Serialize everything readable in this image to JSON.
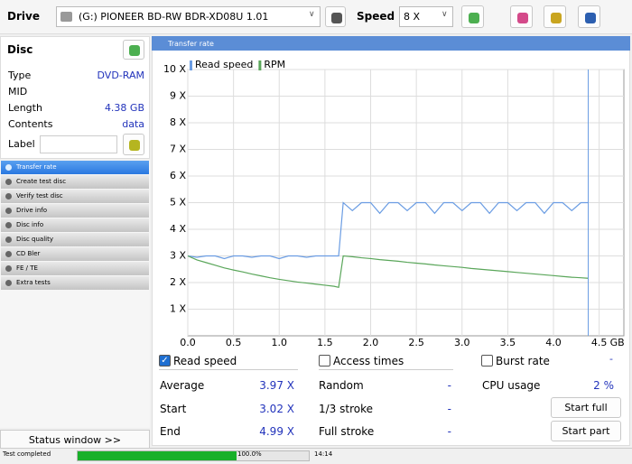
{
  "toolbar": {
    "drive_label": "Drive",
    "drive": "(G:)   PIONEER BD-RW   BDR-XD08U 1.01",
    "speed_label": "Speed",
    "speed": "8 X"
  },
  "disc": {
    "title": "Disc",
    "rows": [
      {
        "label": "Type",
        "value": "DVD-RAM"
      },
      {
        "label": "MID"
      },
      {
        "label": "Length",
        "value": "4.38 GB"
      },
      {
        "label": "Contents",
        "value": "data"
      },
      {
        "label": "Label"
      }
    ]
  },
  "nav": {
    "selected": 0,
    "items": [
      "Transfer rate",
      "Create test disc",
      "Verify test disc",
      "Drive info",
      "Disc info",
      "Disc quality",
      "CD Bler",
      "FE / TE",
      "Extra tests"
    ]
  },
  "status_button": "Status window >>",
  "panel_title": "Transfer rate",
  "chart_data": {
    "type": "line",
    "xlabel": "GB",
    "x": [
      0,
      0.1,
      0.2,
      0.3,
      0.4,
      0.5,
      0.6,
      0.7,
      0.8,
      0.9,
      1.0,
      1.1,
      1.2,
      1.3,
      1.4,
      1.5,
      1.6,
      1.65,
      1.7,
      1.8,
      1.9,
      2.0,
      2.1,
      2.2,
      2.3,
      2.4,
      2.5,
      2.6,
      2.7,
      2.8,
      2.9,
      3.0,
      3.1,
      3.2,
      3.3,
      3.4,
      3.5,
      3.6,
      3.7,
      3.8,
      3.9,
      4.0,
      4.1,
      4.2,
      4.3,
      4.38
    ],
    "series": [
      {
        "name": "Read speed",
        "color": "#6b9de3",
        "values": [
          3.0,
          2.95,
          3.0,
          3.0,
          2.9,
          3.0,
          3.0,
          2.95,
          3.0,
          3.0,
          2.9,
          3.0,
          3.0,
          2.95,
          3.0,
          3.0,
          3.0,
          3.0,
          5.0,
          4.7,
          5.0,
          5.0,
          4.6,
          5.0,
          5.0,
          4.7,
          5.0,
          5.0,
          4.6,
          5.0,
          5.0,
          4.7,
          5.0,
          5.0,
          4.6,
          5.0,
          5.0,
          4.7,
          5.0,
          5.0,
          4.6,
          5.0,
          5.0,
          4.7,
          5.0,
          5.0
        ]
      },
      {
        "name": "RPM",
        "color": "#5aa65a",
        "values": [
          3.0,
          2.85,
          2.75,
          2.65,
          2.55,
          2.47,
          2.4,
          2.32,
          2.25,
          2.18,
          2.12,
          2.07,
          2.02,
          1.98,
          1.94,
          1.9,
          1.86,
          1.82,
          3.0,
          2.97,
          2.93,
          2.9,
          2.86,
          2.83,
          2.8,
          2.76,
          2.73,
          2.7,
          2.66,
          2.63,
          2.6,
          2.57,
          2.53,
          2.5,
          2.47,
          2.44,
          2.41,
          2.38,
          2.35,
          2.32,
          2.29,
          2.26,
          2.23,
          2.2,
          2.18,
          2.16
        ]
      }
    ],
    "xlim": [
      0,
      4.77
    ],
    "xticks": [
      {
        "value": 0,
        "label": "0.0"
      },
      0.5,
      {
        "value": 1,
        "label": "1.0"
      },
      1.5,
      {
        "value": 2,
        "label": "2.0"
      },
      2.5,
      {
        "value": 3,
        "label": "3.0"
      },
      3.5,
      {
        "value": 4,
        "label": "4.0"
      },
      4.5
    ],
    "ylim": [
      0,
      10
    ],
    "yticks": [
      {
        "value": 1,
        "label": "1 X"
      },
      {
        "value": 2,
        "label": "2 X"
      },
      {
        "value": 3,
        "label": "3 X"
      },
      {
        "value": 4,
        "label": "4 X"
      },
      {
        "value": 5,
        "label": "5 X"
      },
      {
        "value": 6,
        "label": "6 X"
      },
      {
        "value": 7,
        "label": "7 X"
      },
      {
        "value": 8,
        "label": "8 X"
      },
      {
        "value": 9,
        "label": "9 X"
      },
      {
        "value": 10,
        "label": "10 X"
      }
    ],
    "grid": true,
    "legend": "top-left"
  },
  "options": [
    {
      "label": "Read speed",
      "checked": true
    },
    {
      "label": "Access times",
      "checked": false
    },
    {
      "label": "Burst rate",
      "checked": false
    }
  ],
  "burst_value": "-",
  "stats": [
    [
      {
        "label": "Average",
        "value": "3.97 X"
      },
      {
        "label": "Start",
        "value": "3.02 X"
      },
      {
        "label": "End",
        "value": "4.99 X"
      }
    ],
    [
      {
        "label": "Random",
        "value": "-"
      },
      {
        "label": "1/3 stroke",
        "value": "-"
      },
      {
        "label": "Full stroke",
        "value": "-"
      }
    ],
    [
      {
        "label": "CPU usage",
        "value": "2 %"
      }
    ]
  ],
  "buttons": [
    "Start full",
    "Start part"
  ],
  "statusbar": {
    "text": "Test completed",
    "progress": 100.0,
    "progress_lim": [
      0,
      100
    ],
    "progress_label": "100.0%",
    "time": "14:14"
  }
}
